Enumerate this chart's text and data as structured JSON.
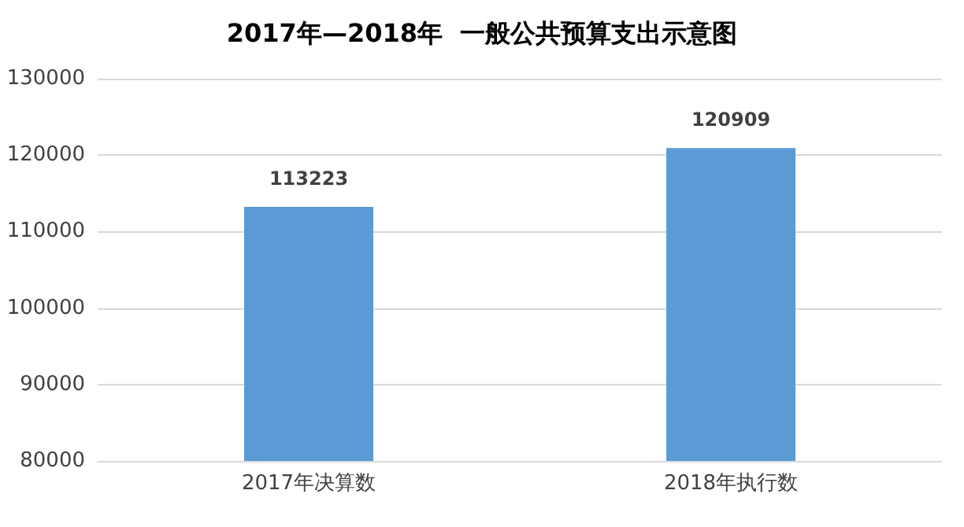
{
  "chart_data": {
    "type": "bar",
    "title": "2017年—2018年  一般公共预算支出示意图",
    "categories": [
      "2017年决算数",
      "2018年执行数"
    ],
    "values": [
      113223,
      120909
    ],
    "color": "#5b9bd5",
    "ylim": [
      80000,
      130000
    ],
    "yticks": [
      80000,
      90000,
      100000,
      110000,
      120000,
      130000
    ],
    "grid": "y",
    "data_labels": true
  }
}
